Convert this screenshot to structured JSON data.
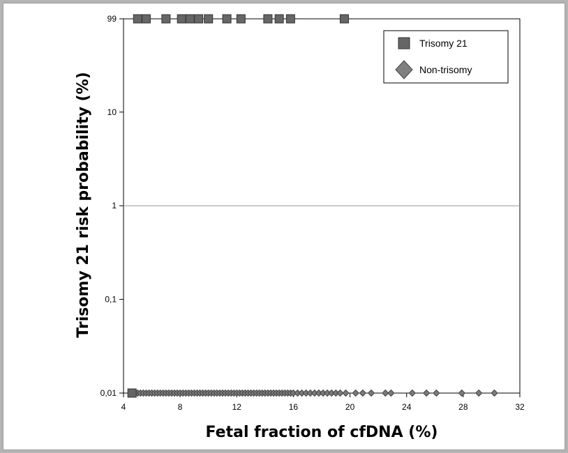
{
  "chart_data": {
    "type": "scatter",
    "title": "",
    "xlabel": "Fetal fraction of cfDNA (%)",
    "ylabel": "Trisomy 21 risk probability (%)",
    "x_scale": "linear",
    "y_scale": "log",
    "xlim": [
      4,
      32
    ],
    "ylim": [
      0.01,
      99
    ],
    "x_ticks": [
      4,
      8,
      12,
      16,
      20,
      24,
      28,
      32
    ],
    "y_ticks": [
      {
        "value": 0.01,
        "label": "0,01"
      },
      {
        "value": 0.1,
        "label": "0,1"
      },
      {
        "value": 1,
        "label": "1"
      },
      {
        "value": 10,
        "label": "10"
      },
      {
        "value": 99,
        "label": "99"
      }
    ],
    "reference_line_y": 1,
    "legend_position": "top-right",
    "series": [
      {
        "name": "Trisomy 21",
        "marker": "square",
        "color": "#666666",
        "points": [
          {
            "x": 5.0,
            "y": 99
          },
          {
            "x": 5.6,
            "y": 99
          },
          {
            "x": 7.0,
            "y": 99
          },
          {
            "x": 8.1,
            "y": 99
          },
          {
            "x": 8.7,
            "y": 99
          },
          {
            "x": 9.3,
            "y": 99
          },
          {
            "x": 10.0,
            "y": 99
          },
          {
            "x": 11.3,
            "y": 99
          },
          {
            "x": 12.3,
            "y": 99
          },
          {
            "x": 14.2,
            "y": 99
          },
          {
            "x": 15.0,
            "y": 99
          },
          {
            "x": 15.8,
            "y": 99
          },
          {
            "x": 19.6,
            "y": 99
          },
          {
            "x": 4.6,
            "y": 0.01
          }
        ]
      },
      {
        "name": "Non-trisomy",
        "marker": "diamond",
        "color": "#7a7a7a",
        "points": [
          {
            "x": 5.0,
            "y": 0.01
          },
          {
            "x": 5.2,
            "y": 0.01
          },
          {
            "x": 5.4,
            "y": 0.01
          },
          {
            "x": 5.6,
            "y": 0.01
          },
          {
            "x": 5.8,
            "y": 0.01
          },
          {
            "x": 6.0,
            "y": 0.01
          },
          {
            "x": 6.2,
            "y": 0.01
          },
          {
            "x": 6.4,
            "y": 0.01
          },
          {
            "x": 6.6,
            "y": 0.01
          },
          {
            "x": 6.8,
            "y": 0.01
          },
          {
            "x": 7.0,
            "y": 0.01
          },
          {
            "x": 7.2,
            "y": 0.01
          },
          {
            "x": 7.4,
            "y": 0.01
          },
          {
            "x": 7.6,
            "y": 0.01
          },
          {
            "x": 7.8,
            "y": 0.01
          },
          {
            "x": 8.0,
            "y": 0.01
          },
          {
            "x": 8.2,
            "y": 0.01
          },
          {
            "x": 8.4,
            "y": 0.01
          },
          {
            "x": 8.6,
            "y": 0.01
          },
          {
            "x": 8.8,
            "y": 0.01
          },
          {
            "x": 9.0,
            "y": 0.01
          },
          {
            "x": 9.2,
            "y": 0.01
          },
          {
            "x": 9.4,
            "y": 0.01
          },
          {
            "x": 9.6,
            "y": 0.01
          },
          {
            "x": 9.8,
            "y": 0.01
          },
          {
            "x": 10.0,
            "y": 0.01
          },
          {
            "x": 10.2,
            "y": 0.01
          },
          {
            "x": 10.4,
            "y": 0.01
          },
          {
            "x": 10.6,
            "y": 0.01
          },
          {
            "x": 10.8,
            "y": 0.01
          },
          {
            "x": 11.0,
            "y": 0.01
          },
          {
            "x": 11.2,
            "y": 0.01
          },
          {
            "x": 11.4,
            "y": 0.01
          },
          {
            "x": 11.6,
            "y": 0.01
          },
          {
            "x": 11.8,
            "y": 0.01
          },
          {
            "x": 12.0,
            "y": 0.01
          },
          {
            "x": 12.2,
            "y": 0.01
          },
          {
            "x": 12.4,
            "y": 0.01
          },
          {
            "x": 12.6,
            "y": 0.01
          },
          {
            "x": 12.8,
            "y": 0.01
          },
          {
            "x": 13.0,
            "y": 0.01
          },
          {
            "x": 13.2,
            "y": 0.01
          },
          {
            "x": 13.4,
            "y": 0.01
          },
          {
            "x": 13.6,
            "y": 0.01
          },
          {
            "x": 13.8,
            "y": 0.01
          },
          {
            "x": 14.0,
            "y": 0.01
          },
          {
            "x": 14.2,
            "y": 0.01
          },
          {
            "x": 14.4,
            "y": 0.01
          },
          {
            "x": 14.6,
            "y": 0.01
          },
          {
            "x": 14.8,
            "y": 0.01
          },
          {
            "x": 15.0,
            "y": 0.01
          },
          {
            "x": 15.2,
            "y": 0.01
          },
          {
            "x": 15.4,
            "y": 0.01
          },
          {
            "x": 15.6,
            "y": 0.01
          },
          {
            "x": 15.8,
            "y": 0.01
          },
          {
            "x": 16.0,
            "y": 0.01
          },
          {
            "x": 16.3,
            "y": 0.01
          },
          {
            "x": 16.6,
            "y": 0.01
          },
          {
            "x": 16.9,
            "y": 0.01
          },
          {
            "x": 17.2,
            "y": 0.01
          },
          {
            "x": 17.5,
            "y": 0.01
          },
          {
            "x": 17.8,
            "y": 0.01
          },
          {
            "x": 18.1,
            "y": 0.01
          },
          {
            "x": 18.4,
            "y": 0.01
          },
          {
            "x": 18.7,
            "y": 0.01
          },
          {
            "x": 19.0,
            "y": 0.01
          },
          {
            "x": 19.3,
            "y": 0.01
          },
          {
            "x": 19.7,
            "y": 0.01
          },
          {
            "x": 20.4,
            "y": 0.01
          },
          {
            "x": 20.9,
            "y": 0.01
          },
          {
            "x": 21.5,
            "y": 0.01
          },
          {
            "x": 22.5,
            "y": 0.01
          },
          {
            "x": 22.9,
            "y": 0.01
          },
          {
            "x": 24.4,
            "y": 0.01
          },
          {
            "x": 25.4,
            "y": 0.01
          },
          {
            "x": 26.1,
            "y": 0.01
          },
          {
            "x": 27.9,
            "y": 0.01
          },
          {
            "x": 29.1,
            "y": 0.01
          },
          {
            "x": 30.2,
            "y": 0.01
          }
        ]
      }
    ]
  }
}
